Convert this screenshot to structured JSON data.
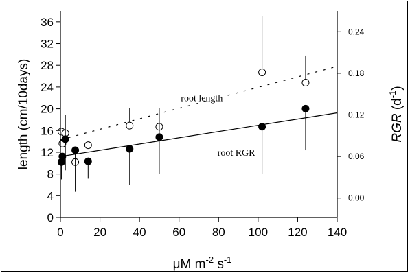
{
  "chart_data": {
    "type": "scatter",
    "xlabel": "μM m-2 s-1",
    "ylabel_left": "length (cm/10days)",
    "ylabel_right": "RGR (d-1)",
    "xlim": [
      0,
      140
    ],
    "ylim_left": [
      0,
      38
    ],
    "ylim_right": [
      -0.028,
      0.27
    ],
    "x_ticks": [
      0,
      20,
      40,
      60,
      80,
      100,
      120,
      140
    ],
    "y_left_ticks": [
      0,
      4,
      8,
      12,
      16,
      20,
      24,
      28,
      32,
      36
    ],
    "y_right_ticks": [
      "0.00",
      "0.06",
      "0.12",
      "0.18",
      "0.24"
    ],
    "grid": false,
    "legend": "none",
    "annotations": [
      {
        "text": "root length",
        "near_x": 80,
        "near_y": 0.145
      },
      {
        "text": "root RGR",
        "near_x": 85,
        "near_y": 0.065
      }
    ],
    "series": [
      {
        "name": "root length",
        "marker": "open-circle",
        "axis": "left",
        "x": [
          0.5,
          1,
          2.5,
          7.5,
          14,
          35,
          50,
          102,
          124
        ],
        "y": [
          15.8,
          13.6,
          15.5,
          10.2,
          13.3,
          16.9,
          16.7,
          26.7,
          24.8
        ],
        "err_up": [
          0,
          0,
          0,
          0,
          0,
          3.2,
          0,
          10.3,
          5.0
        ],
        "err_down": [
          0,
          0,
          0,
          0,
          0,
          0,
          0,
          0,
          0
        ],
        "trend": {
          "type": "dashed",
          "x": [
            0,
            140
          ],
          "y": [
            14.3,
            27.8
          ]
        }
      },
      {
        "name": "root RGR",
        "marker": "filled-circle",
        "axis": "right",
        "x": [
          0.5,
          1,
          2.5,
          7.5,
          14,
          35,
          50,
          102,
          124
        ],
        "y": [
          0.052,
          0.06,
          0.085,
          0.069,
          0.053,
          0.071,
          0.088,
          0.103,
          0.129
        ],
        "err_up": [
          0,
          0,
          0.035,
          0,
          0,
          0,
          0.042,
          0,
          0
        ],
        "err_down": [
          0.025,
          0,
          0.045,
          0.06,
          0.025,
          0.052,
          0.053,
          0.068,
          0.06
        ],
        "trend": {
          "type": "solid",
          "x": [
            0,
            140
          ],
          "y": [
            0.06,
            0.123
          ]
        }
      }
    ]
  }
}
